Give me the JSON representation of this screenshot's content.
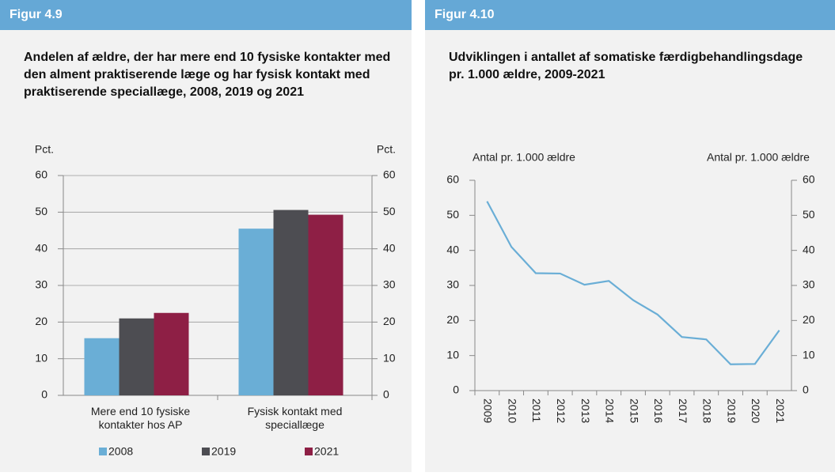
{
  "chart_data": [
    {
      "type": "bar",
      "figure_label": "Figur 4.9",
      "title": "Andelen af ældre, der har mere end 10 fysiske kontakter med den alment praktiserende læge og har fysisk kontakt med praktiserende speciallæge, 2008, 2019 og 2021",
      "ylabel": "Pct.",
      "y2label": "Pct.",
      "categories": [
        "Mere end 10 fysiske kontakter hos AP",
        "Fysisk kontakt med speciallæge"
      ],
      "series": [
        {
          "name": "2008",
          "color": "#6aaed6",
          "values": [
            15.6,
            45.5
          ]
        },
        {
          "name": "2019",
          "color": "#4d4d52",
          "values": [
            21.0,
            50.6
          ]
        },
        {
          "name": "2021",
          "color": "#8e1f45",
          "values": [
            22.5,
            49.3
          ]
        }
      ],
      "ylim": [
        0,
        60
      ],
      "yticks": [
        0,
        10,
        20,
        30,
        40,
        50,
        60
      ],
      "y2lim": [
        0,
        60
      ],
      "y2ticks": [
        0,
        10,
        20,
        30,
        40,
        50,
        60
      ],
      "grid": true,
      "legend": "bottom"
    },
    {
      "type": "line",
      "figure_label": "Figur 4.10",
      "title": "Udviklingen i antallet af somatiske færdigbehandlingsdage pr. 1.000 ældre, 2009-2021",
      "ylabel": "Antal pr. 1.000 ældre",
      "y2label": "Antal pr. 1.000 ældre",
      "categories": [
        "2009",
        "2010",
        "2011",
        "2012",
        "2013",
        "2014",
        "2015",
        "2016",
        "2017",
        "2018",
        "2019",
        "2020",
        "2021"
      ],
      "series": [
        {
          "color": "#6aaed6",
          "values": [
            54,
            41,
            33.5,
            33.4,
            30.2,
            31.3,
            25.8,
            21.7,
            15.3,
            14.6,
            7.5,
            7.6,
            17.2
          ]
        }
      ],
      "ylim": [
        0,
        60
      ],
      "yticks": [
        0,
        10,
        20,
        30,
        40,
        50,
        60
      ],
      "y2lim": [
        0,
        60
      ],
      "y2ticks": [
        0,
        10,
        20,
        30,
        40,
        50,
        60
      ],
      "grid": false
    }
  ]
}
